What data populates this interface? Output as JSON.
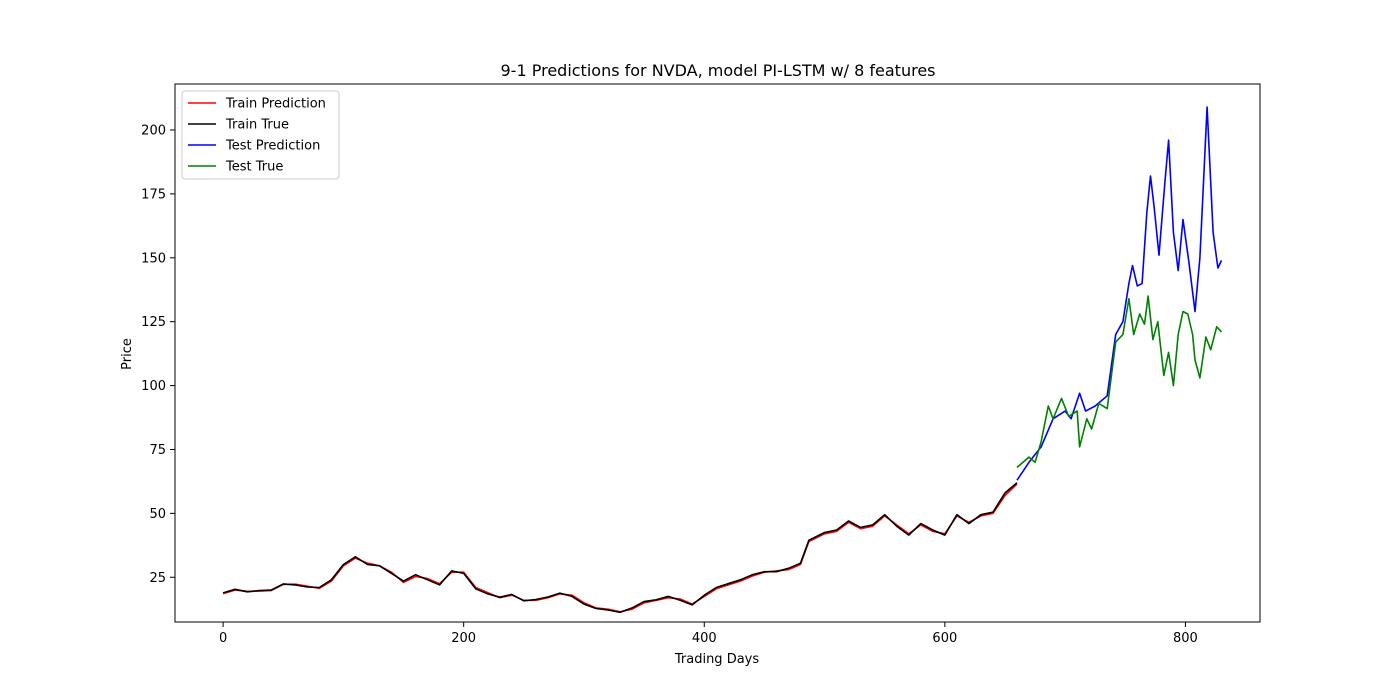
{
  "chart_data": {
    "type": "line",
    "title": "9-1 Predictions for NVDA, model PI-LSTM w/ 8 features",
    "xlabel": "Trading Days",
    "ylabel": "Price",
    "xlim": [
      -40,
      862
    ],
    "ylim": [
      7.5,
      218
    ],
    "xticks": [
      0,
      200,
      400,
      600,
      800
    ],
    "yticks": [
      25,
      50,
      75,
      100,
      125,
      150,
      175,
      200
    ],
    "grid": false,
    "legend_position": "top-left",
    "series": [
      {
        "name": "Train Prediction",
        "color": "#ff0000",
        "points": [
          [
            0,
            18.6
          ],
          [
            10,
            20
          ],
          [
            20,
            19.5
          ],
          [
            30,
            19.6
          ],
          [
            40,
            19.8
          ],
          [
            50,
            22.2
          ],
          [
            60,
            22.3
          ],
          [
            70,
            21.5
          ],
          [
            80,
            20.7
          ],
          [
            90,
            23.5
          ],
          [
            100,
            29.5
          ],
          [
            110,
            32.5
          ],
          [
            120,
            30.5
          ],
          [
            130,
            29.5
          ],
          [
            140,
            27
          ],
          [
            150,
            23
          ],
          [
            160,
            25.3
          ],
          [
            170,
            24.5
          ],
          [
            180,
            22.5
          ],
          [
            190,
            27
          ],
          [
            200,
            27
          ],
          [
            210,
            21
          ],
          [
            220,
            19
          ],
          [
            230,
            17
          ],
          [
            240,
            18
          ],
          [
            250,
            16
          ],
          [
            260,
            16
          ],
          [
            270,
            17
          ],
          [
            280,
            18.5
          ],
          [
            290,
            18
          ],
          [
            300,
            15
          ],
          [
            310,
            13
          ],
          [
            320,
            12.5
          ],
          [
            330,
            11.5
          ],
          [
            340,
            12.5
          ],
          [
            350,
            15
          ],
          [
            360,
            16
          ],
          [
            370,
            17
          ],
          [
            380,
            16.5
          ],
          [
            390,
            14.5
          ],
          [
            400,
            17.5
          ],
          [
            410,
            20.5
          ],
          [
            420,
            22
          ],
          [
            430,
            23.5
          ],
          [
            440,
            25.5
          ],
          [
            450,
            27
          ],
          [
            460,
            27.5
          ],
          [
            470,
            28
          ],
          [
            480,
            30
          ],
          [
            487,
            39
          ],
          [
            500,
            42
          ],
          [
            510,
            43
          ],
          [
            520,
            46.5
          ],
          [
            530,
            44
          ],
          [
            540,
            45
          ],
          [
            550,
            49
          ],
          [
            560,
            45.5
          ],
          [
            570,
            42
          ],
          [
            580,
            45.5
          ],
          [
            590,
            43
          ],
          [
            600,
            42
          ],
          [
            610,
            49
          ],
          [
            620,
            46.5
          ],
          [
            630,
            49
          ],
          [
            640,
            50
          ],
          [
            650,
            57
          ],
          [
            660,
            61.5
          ]
        ]
      },
      {
        "name": "Train True",
        "color": "#000000",
        "points": [
          [
            0,
            18.9
          ],
          [
            10,
            20.3
          ],
          [
            20,
            19.3
          ],
          [
            30,
            19.8
          ],
          [
            40,
            20
          ],
          [
            50,
            22.4
          ],
          [
            60,
            22
          ],
          [
            70,
            21.2
          ],
          [
            80,
            21
          ],
          [
            90,
            24
          ],
          [
            100,
            30
          ],
          [
            110,
            33
          ],
          [
            120,
            30
          ],
          [
            130,
            29.5
          ],
          [
            140,
            26.5
          ],
          [
            150,
            23.5
          ],
          [
            160,
            26
          ],
          [
            170,
            24
          ],
          [
            180,
            22
          ],
          [
            190,
            27.5
          ],
          [
            200,
            26.5
          ],
          [
            210,
            20.5
          ],
          [
            220,
            18.5
          ],
          [
            230,
            17.2
          ],
          [
            240,
            18.3
          ],
          [
            250,
            15.8
          ],
          [
            260,
            16.3
          ],
          [
            270,
            17.3
          ],
          [
            280,
            18.8
          ],
          [
            290,
            17.5
          ],
          [
            300,
            14.5
          ],
          [
            310,
            12.8
          ],
          [
            320,
            12.2
          ],
          [
            330,
            11.3
          ],
          [
            340,
            13
          ],
          [
            350,
            15.5
          ],
          [
            360,
            16.2
          ],
          [
            370,
            17.5
          ],
          [
            380,
            16
          ],
          [
            390,
            14.2
          ],
          [
            400,
            18
          ],
          [
            410,
            21
          ],
          [
            420,
            22.5
          ],
          [
            430,
            24
          ],
          [
            440,
            26
          ],
          [
            450,
            27.2
          ],
          [
            460,
            27.2
          ],
          [
            470,
            28.5
          ],
          [
            480,
            30.5
          ],
          [
            487,
            39.5
          ],
          [
            500,
            42.5
          ],
          [
            510,
            43.5
          ],
          [
            520,
            47
          ],
          [
            530,
            44.5
          ],
          [
            540,
            45.5
          ],
          [
            550,
            49.5
          ],
          [
            560,
            45
          ],
          [
            570,
            41.5
          ],
          [
            580,
            46
          ],
          [
            590,
            43.5
          ],
          [
            600,
            41.5
          ],
          [
            610,
            49.5
          ],
          [
            620,
            46
          ],
          [
            630,
            49.5
          ],
          [
            640,
            50.5
          ],
          [
            650,
            58
          ],
          [
            660,
            62
          ]
        ]
      },
      {
        "name": "Test Prediction",
        "color": "#0000ff",
        "points": [
          [
            660,
            63
          ],
          [
            670,
            70
          ],
          [
            680,
            76
          ],
          [
            690,
            87
          ],
          [
            700,
            90
          ],
          [
            705,
            87
          ],
          [
            712,
            97
          ],
          [
            717,
            90
          ],
          [
            725,
            92
          ],
          [
            735,
            96
          ],
          [
            742,
            120
          ],
          [
            748,
            125
          ],
          [
            753,
            140
          ],
          [
            756,
            147
          ],
          [
            760,
            139
          ],
          [
            764,
            140
          ],
          [
            768,
            168
          ],
          [
            771,
            182
          ],
          [
            774,
            170
          ],
          [
            778,
            151
          ],
          [
            783,
            180
          ],
          [
            786,
            196
          ],
          [
            790,
            160
          ],
          [
            794,
            145
          ],
          [
            798,
            165
          ],
          [
            803,
            148
          ],
          [
            808,
            129
          ],
          [
            812,
            150
          ],
          [
            818,
            209
          ],
          [
            823,
            160
          ],
          [
            827,
            146
          ],
          [
            830,
            149
          ]
        ]
      },
      {
        "name": "Test True",
        "color": "#008000",
        "points": [
          [
            660,
            68
          ],
          [
            670,
            72
          ],
          [
            675,
            70
          ],
          [
            680,
            78
          ],
          [
            686,
            92
          ],
          [
            690,
            87
          ],
          [
            697,
            95
          ],
          [
            703,
            88
          ],
          [
            710,
            90
          ],
          [
            712,
            76
          ],
          [
            718,
            87
          ],
          [
            722,
            83
          ],
          [
            728,
            93
          ],
          [
            735,
            91
          ],
          [
            742,
            117
          ],
          [
            748,
            120
          ],
          [
            753,
            134
          ],
          [
            757,
            120
          ],
          [
            762,
            128
          ],
          [
            766,
            124
          ],
          [
            769,
            135
          ],
          [
            773,
            118
          ],
          [
            777,
            125
          ],
          [
            782,
            104
          ],
          [
            786,
            113
          ],
          [
            790,
            100
          ],
          [
            794,
            120
          ],
          [
            798,
            129
          ],
          [
            802,
            128
          ],
          [
            806,
            120
          ],
          [
            808,
            110
          ],
          [
            812,
            103
          ],
          [
            817,
            119
          ],
          [
            821,
            114
          ],
          [
            826,
            123
          ],
          [
            830,
            121
          ]
        ]
      }
    ]
  }
}
